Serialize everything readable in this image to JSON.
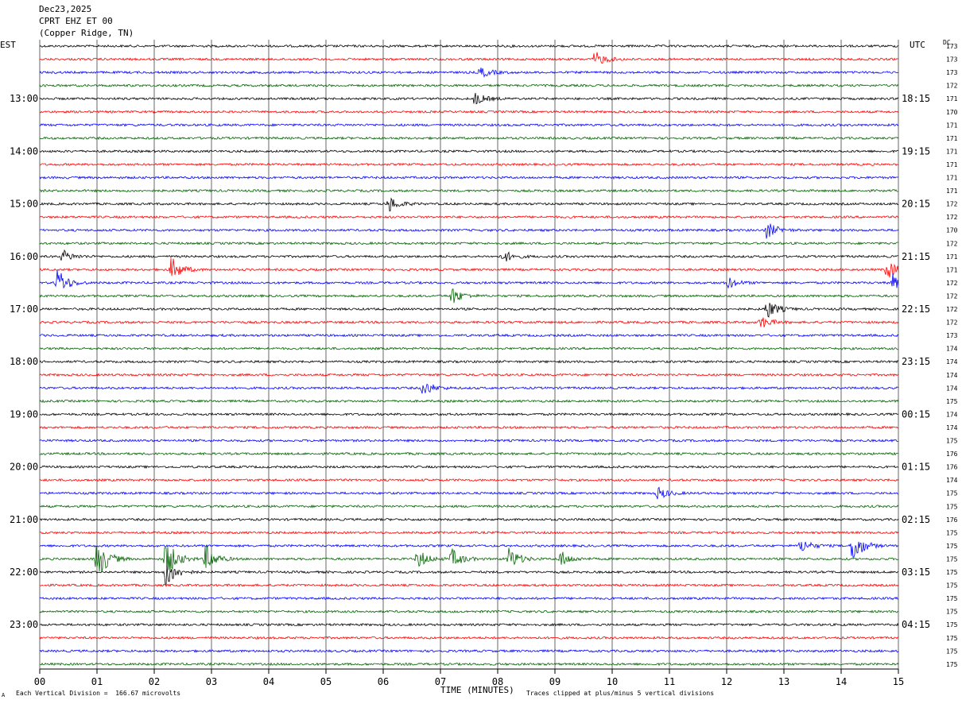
{
  "header": {
    "date": "Dec23,2025",
    "station": "CPRT EHZ ET 00",
    "location": "(Copper Ridge, TN)"
  },
  "left_tz": "EST",
  "right_tz": "UTC",
  "dc_header": "DC",
  "footer": {
    "scale_note": "Each Vertical Division =  166.67 microvolts",
    "xlabel": "TIME (MINUTES)",
    "clip_note": "Traces clipped at plus/minus 5 vertical divisions",
    "corner_mark": "A"
  },
  "chart_data": {
    "type": "line",
    "title": "CPRT EHZ ET 00",
    "xlabel": "TIME (MINUTES)",
    "xlim": [
      0,
      15
    ],
    "x_ticks": [
      "00",
      "01",
      "02",
      "03",
      "04",
      "05",
      "06",
      "07",
      "08",
      "09",
      "10",
      "11",
      "12",
      "13",
      "14",
      "15"
    ],
    "rows_per_hour": 4,
    "row_count": 48,
    "trace_colors": [
      "#000000",
      "#ff0000",
      "#0000ff",
      "#006400"
    ],
    "grid": true,
    "left_hour_labels": [
      "13:00",
      "14:00",
      "15:00",
      "16:00",
      "17:00",
      "18:00",
      "19:00",
      "20:00",
      "21:00",
      "22:00",
      "23:00"
    ],
    "right_hour_labels": [
      "18:15",
      "19:15",
      "20:15",
      "21:15",
      "22:15",
      "23:15",
      "00:15",
      "01:15",
      "02:15",
      "03:15",
      "04:15"
    ],
    "dc_offsets": [
      "173",
      "173",
      "173",
      "172",
      "171",
      "170",
      "171",
      "171",
      "171",
      "171",
      "171",
      "171",
      "172",
      "172",
      "170",
      "172",
      "171",
      "171",
      "172",
      "172",
      "172",
      "172",
      "173",
      "174",
      "174",
      "174",
      "174",
      "175",
      "174",
      "174",
      "175",
      "176",
      "176",
      "174",
      "175",
      "175",
      "176",
      "175",
      "175",
      "175",
      "175",
      "175",
      "175",
      "175",
      "175",
      "175",
      "175",
      "175"
    ],
    "events": [
      {
        "row": 1,
        "minute": 9.7,
        "amp": 2.0
      },
      {
        "row": 2,
        "minute": 7.7,
        "amp": 1.4
      },
      {
        "row": 4,
        "minute": 7.6,
        "amp": 1.6
      },
      {
        "row": 12,
        "minute": 6.1,
        "amp": 2.0
      },
      {
        "row": 14,
        "minute": 12.7,
        "amp": 2.2
      },
      {
        "row": 16,
        "minute": 0.4,
        "amp": 1.6
      },
      {
        "row": 16,
        "minute": 8.1,
        "amp": 1.5
      },
      {
        "row": 17,
        "minute": 2.3,
        "amp": 3.2
      },
      {
        "row": 17,
        "minute": 14.8,
        "amp": 2.4
      },
      {
        "row": 18,
        "minute": 0.3,
        "amp": 4.0
      },
      {
        "row": 18,
        "minute": 12.0,
        "amp": 1.6
      },
      {
        "row": 18,
        "minute": 14.9,
        "amp": 2.2
      },
      {
        "row": 19,
        "minute": 7.2,
        "amp": 2.2
      },
      {
        "row": 20,
        "minute": 12.7,
        "amp": 2.6
      },
      {
        "row": 21,
        "minute": 12.6,
        "amp": 1.6
      },
      {
        "row": 26,
        "minute": 6.7,
        "amp": 2.0
      },
      {
        "row": 34,
        "minute": 10.8,
        "amp": 1.6
      },
      {
        "row": 38,
        "minute": 14.2,
        "amp": 4.5
      },
      {
        "row": 38,
        "minute": 13.3,
        "amp": 1.8
      },
      {
        "row": 39,
        "minute": 1.0,
        "amp": 6.0
      },
      {
        "row": 39,
        "minute": 2.2,
        "amp": 5.5
      },
      {
        "row": 39,
        "minute": 2.9,
        "amp": 3.5
      },
      {
        "row": 39,
        "minute": 6.6,
        "amp": 2.5
      },
      {
        "row": 39,
        "minute": 7.2,
        "amp": 2.5
      },
      {
        "row": 39,
        "minute": 8.2,
        "amp": 3.0
      },
      {
        "row": 39,
        "minute": 9.1,
        "amp": 2.0
      },
      {
        "row": 40,
        "minute": 2.2,
        "amp": 4.0
      }
    ]
  }
}
